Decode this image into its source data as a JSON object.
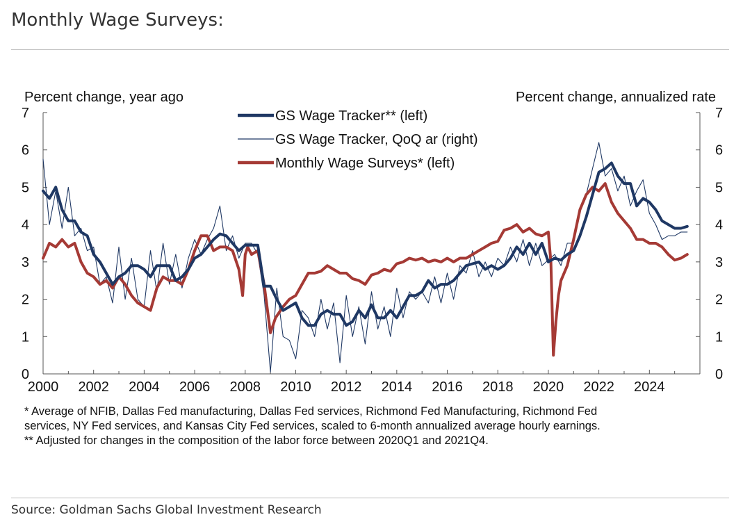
{
  "page": {
    "title": "Monthly Wage Surveys:",
    "source": "Source: Goldman Sachs Global Investment Research",
    "footnotes": [
      "* Average of NFIB, Dallas Fed manufacturing, Dallas Fed services, Richmond Fed Manufacturing, Richmond Fed",
      "services, NY Fed services, and Kansas City Fed services, scaled to 6-month annualized average hourly earnings.",
      "** Adjusted for changes in the composition of the labor force between 2020Q1 and 2021Q4."
    ]
  },
  "chart_data": {
    "type": "line",
    "left_axis_label": "Percent change, year ago",
    "right_axis_label": "Percent change, annualized rate",
    "xlim": [
      2000,
      2026
    ],
    "ylim": [
      0,
      7
    ],
    "y2lim": [
      0,
      7
    ],
    "x_ticks": [
      "2000",
      "2002",
      "2004",
      "2006",
      "2008",
      "2010",
      "2012",
      "2014",
      "2016",
      "2018",
      "2020",
      "2022",
      "2024"
    ],
    "y_ticks": [
      "0",
      "1",
      "2",
      "3",
      "4",
      "5",
      "6",
      "7"
    ],
    "y2_ticks": [
      "0",
      "1",
      "2",
      "3",
      "4",
      "5",
      "6",
      "7"
    ],
    "legend_position": "top-center",
    "series": [
      {
        "name": "GS Wage Tracker** (left)",
        "axis": "left",
        "color": "#1f3864",
        "style": "thick",
        "x": [
          2000.0,
          2000.25,
          2000.5,
          2000.75,
          2001.0,
          2001.25,
          2001.5,
          2001.75,
          2002.0,
          2002.25,
          2002.5,
          2002.75,
          2003.0,
          2003.25,
          2003.5,
          2003.75,
          2004.0,
          2004.25,
          2004.5,
          2004.75,
          2005.0,
          2005.25,
          2005.5,
          2005.75,
          2006.0,
          2006.25,
          2006.5,
          2006.75,
          2007.0,
          2007.25,
          2007.5,
          2007.75,
          2008.0,
          2008.25,
          2008.5,
          2008.75,
          2009.0,
          2009.25,
          2009.5,
          2009.75,
          2010.0,
          2010.25,
          2010.5,
          2010.75,
          2011.0,
          2011.25,
          2011.5,
          2011.75,
          2012.0,
          2012.25,
          2012.5,
          2012.75,
          2013.0,
          2013.25,
          2013.5,
          2013.75,
          2014.0,
          2014.25,
          2014.5,
          2014.75,
          2015.0,
          2015.25,
          2015.5,
          2015.75,
          2016.0,
          2016.25,
          2016.5,
          2016.75,
          2017.0,
          2017.25,
          2017.5,
          2017.75,
          2018.0,
          2018.25,
          2018.5,
          2018.75,
          2019.0,
          2019.25,
          2019.5,
          2019.75,
          2020.0,
          2020.25,
          2020.5,
          2020.75,
          2021.0,
          2021.25,
          2021.5,
          2021.75,
          2022.0,
          2022.25,
          2022.5,
          2022.75,
          2023.0,
          2023.25,
          2023.5,
          2023.75,
          2024.0,
          2024.25,
          2024.5,
          2024.75,
          2025.0,
          2025.25,
          2025.5
        ],
        "values": [
          4.9,
          4.7,
          5.0,
          4.4,
          4.1,
          4.1,
          3.8,
          3.7,
          3.2,
          3.0,
          2.7,
          2.4,
          2.6,
          2.7,
          2.9,
          2.9,
          2.8,
          2.6,
          2.9,
          2.9,
          2.9,
          2.5,
          2.6,
          2.8,
          3.1,
          3.2,
          3.4,
          3.6,
          3.75,
          3.7,
          3.5,
          3.3,
          3.45,
          3.45,
          3.45,
          2.35,
          2.35,
          2.0,
          1.7,
          1.8,
          1.9,
          1.5,
          1.3,
          1.3,
          1.6,
          1.7,
          1.6,
          1.6,
          1.3,
          1.4,
          1.7,
          1.5,
          1.85,
          1.5,
          1.5,
          1.7,
          1.5,
          1.8,
          2.1,
          2.1,
          2.2,
          2.5,
          2.3,
          2.4,
          2.4,
          2.5,
          2.7,
          2.9,
          2.95,
          3.0,
          2.8,
          2.9,
          2.8,
          2.9,
          3.1,
          3.4,
          3.2,
          3.5,
          3.2,
          3.5,
          3.0,
          3.1,
          3.05,
          3.2,
          3.3,
          3.7,
          4.2,
          4.8,
          5.4,
          5.5,
          5.65,
          5.3,
          5.1,
          5.1,
          4.5,
          4.7,
          4.6,
          4.4,
          4.1,
          4.0,
          3.9,
          3.9,
          3.95
        ]
      },
      {
        "name": "GS Wage Tracker, QoQ ar (right)",
        "axis": "right",
        "color": "#1f3864",
        "style": "thin",
        "x": [
          2000.0,
          2000.25,
          2000.5,
          2000.75,
          2001.0,
          2001.25,
          2001.5,
          2001.75,
          2002.0,
          2002.25,
          2002.5,
          2002.75,
          2003.0,
          2003.25,
          2003.5,
          2003.75,
          2004.0,
          2004.25,
          2004.5,
          2004.75,
          2005.0,
          2005.25,
          2005.5,
          2005.75,
          2006.0,
          2006.25,
          2006.5,
          2006.75,
          2007.0,
          2007.25,
          2007.5,
          2007.75,
          2008.0,
          2008.25,
          2008.5,
          2008.75,
          2009.0,
          2009.25,
          2009.5,
          2009.75,
          2010.0,
          2010.25,
          2010.5,
          2010.75,
          2011.0,
          2011.25,
          2011.5,
          2011.75,
          2012.0,
          2012.25,
          2012.5,
          2012.75,
          2013.0,
          2013.25,
          2013.5,
          2013.75,
          2014.0,
          2014.25,
          2014.5,
          2014.75,
          2015.0,
          2015.25,
          2015.5,
          2015.75,
          2016.0,
          2016.25,
          2016.5,
          2016.75,
          2017.0,
          2017.25,
          2017.5,
          2017.75,
          2018.0,
          2018.25,
          2018.5,
          2018.75,
          2019.0,
          2019.25,
          2019.5,
          2019.75,
          2020.0,
          2020.25,
          2020.5,
          2020.75,
          2021.0,
          2021.25,
          2021.5,
          2021.75,
          2022.0,
          2022.25,
          2022.5,
          2022.75,
          2023.0,
          2023.25,
          2023.5,
          2023.75,
          2024.0,
          2024.25,
          2024.5,
          2024.75,
          2025.0,
          2025.25,
          2025.5
        ],
        "values": [
          5.75,
          4.0,
          4.9,
          3.9,
          5.0,
          3.7,
          3.9,
          3.3,
          3.4,
          2.4,
          2.6,
          1.9,
          3.4,
          2.0,
          3.1,
          2.0,
          1.8,
          3.3,
          2.2,
          3.5,
          2.4,
          3.2,
          2.3,
          3.1,
          3.6,
          3.2,
          3.6,
          3.9,
          4.5,
          3.3,
          3.7,
          3.1,
          3.5,
          3.5,
          3.2,
          2.1,
          0.05,
          2.3,
          1.0,
          0.9,
          0.4,
          1.7,
          1.5,
          1.0,
          2.0,
          1.2,
          1.9,
          0.3,
          2.1,
          1.0,
          1.8,
          0.8,
          2.2,
          1.2,
          1.8,
          1.0,
          2.3,
          1.5,
          2.2,
          2.0,
          2.2,
          1.9,
          2.6,
          1.9,
          2.7,
          2.0,
          2.9,
          2.7,
          3.3,
          2.6,
          3.0,
          2.6,
          3.1,
          2.9,
          3.4,
          3.0,
          3.6,
          2.9,
          3.5,
          2.9,
          3.05,
          3.2,
          2.9,
          3.5,
          3.5,
          4.4,
          4.8,
          5.5,
          6.2,
          5.3,
          5.5,
          4.9,
          5.3,
          4.5,
          4.9,
          5.2,
          4.3,
          4.0,
          3.6,
          3.7,
          3.7,
          3.8,
          3.8
        ]
      },
      {
        "name": "Monthly Wage Surveys* (left)",
        "axis": "left",
        "color": "#a53a35",
        "style": "thick",
        "x": [
          2000.0,
          2000.25,
          2000.5,
          2000.75,
          2001.0,
          2001.25,
          2001.5,
          2001.75,
          2002.0,
          2002.25,
          2002.5,
          2002.75,
          2003.0,
          2003.25,
          2003.5,
          2003.75,
          2004.0,
          2004.25,
          2004.5,
          2004.75,
          2005.0,
          2005.25,
          2005.5,
          2005.75,
          2006.0,
          2006.25,
          2006.5,
          2006.75,
          2007.0,
          2007.25,
          2007.5,
          2007.75,
          2007.9,
          2008.0,
          2008.1,
          2008.25,
          2008.5,
          2008.75,
          2009.0,
          2009.2,
          2009.5,
          2009.75,
          2010.0,
          2010.25,
          2010.5,
          2010.75,
          2011.0,
          2011.25,
          2011.5,
          2011.75,
          2012.0,
          2012.25,
          2012.5,
          2012.75,
          2013.0,
          2013.25,
          2013.5,
          2013.75,
          2014.0,
          2014.25,
          2014.5,
          2014.75,
          2015.0,
          2015.25,
          2015.5,
          2015.75,
          2016.0,
          2016.25,
          2016.5,
          2016.75,
          2017.0,
          2017.25,
          2017.5,
          2017.75,
          2018.0,
          2018.25,
          2018.5,
          2018.75,
          2019.0,
          2019.25,
          2019.5,
          2019.75,
          2020.0,
          2020.1,
          2020.2,
          2020.3,
          2020.4,
          2020.5,
          2020.75,
          2021.0,
          2021.25,
          2021.5,
          2021.75,
          2022.0,
          2022.25,
          2022.5,
          2022.75,
          2023.0,
          2023.25,
          2023.5,
          2023.75,
          2024.0,
          2024.25,
          2024.5,
          2024.75,
          2025.0,
          2025.25,
          2025.5
        ],
        "values": [
          3.1,
          3.5,
          3.4,
          3.6,
          3.4,
          3.5,
          3.0,
          2.7,
          2.6,
          2.4,
          2.5,
          2.3,
          2.6,
          2.4,
          2.1,
          1.9,
          1.8,
          1.7,
          2.3,
          2.6,
          2.5,
          2.5,
          2.4,
          2.8,
          3.3,
          3.7,
          3.7,
          3.3,
          3.4,
          3.4,
          3.3,
          2.8,
          2.1,
          3.2,
          3.4,
          3.2,
          3.3,
          2.4,
          1.1,
          1.5,
          1.8,
          2.0,
          2.1,
          2.4,
          2.7,
          2.7,
          2.75,
          2.9,
          2.8,
          2.7,
          2.7,
          2.55,
          2.5,
          2.4,
          2.65,
          2.7,
          2.8,
          2.75,
          2.95,
          3.0,
          3.1,
          3.05,
          3.1,
          3.0,
          3.05,
          3.0,
          3.1,
          3.0,
          3.1,
          3.1,
          3.2,
          3.3,
          3.4,
          3.5,
          3.55,
          3.85,
          3.9,
          4.0,
          3.8,
          3.9,
          3.75,
          3.7,
          3.8,
          3.0,
          0.5,
          1.4,
          2.1,
          2.5,
          2.9,
          3.6,
          4.4,
          4.8,
          5.0,
          4.9,
          5.1,
          4.6,
          4.3,
          4.1,
          3.9,
          3.6,
          3.6,
          3.5,
          3.5,
          3.4,
          3.2,
          3.05,
          3.1,
          3.2
        ]
      }
    ]
  }
}
